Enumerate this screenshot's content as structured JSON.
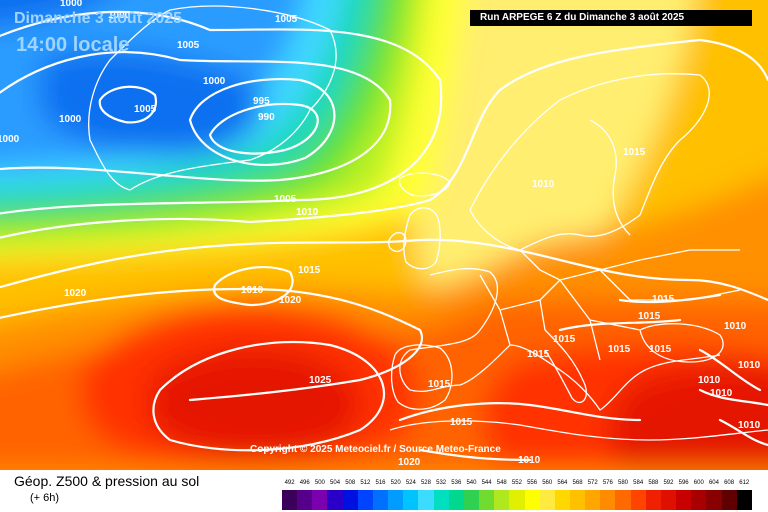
{
  "header": {
    "run_title": "Run ARPEGE 6 Z du Dimanche 3 août 2025",
    "valid_date": "Dimanche 3 août 2025",
    "valid_time": "14:00 locale"
  },
  "copyright": "Copyright © 2025 Meteociel.fr / Source Meteo-France",
  "legend": {
    "title": "Géop. Z500 & pression au sol",
    "subtitle": "(+ 6h)",
    "scale_values": [
      "492",
      "496",
      "500",
      "504",
      "508",
      "512",
      "516",
      "520",
      "524",
      "528",
      "532",
      "536",
      "540",
      "544",
      "548",
      "552",
      "556",
      "560",
      "564",
      "568",
      "572",
      "576",
      "580",
      "584",
      "588",
      "592",
      "596",
      "600",
      "604",
      "608",
      "612"
    ],
    "scale_colors": [
      "#3a005a",
      "#55008a",
      "#7a00b0",
      "#2a00c8",
      "#0010e0",
      "#0044ff",
      "#0070ff",
      "#009cff",
      "#00c4ff",
      "#3cdcff",
      "#00e0c0",
      "#00d890",
      "#30d050",
      "#70dc30",
      "#b0e820",
      "#e0f000",
      "#ffff00",
      "#ffea40",
      "#ffd800",
      "#ffc000",
      "#ffa600",
      "#ff8c00",
      "#ff6a00",
      "#ff4400",
      "#f02000",
      "#e01000",
      "#c80000",
      "#a80000",
      "#880000",
      "#600000",
      "#000000"
    ]
  },
  "pressure_labels": [
    "1000",
    "1005",
    "1000",
    "1005",
    "1000",
    "995",
    "990",
    "1000",
    "1000",
    "1005",
    "1005",
    "1010",
    "1015",
    "1010",
    "1020",
    "1020",
    "1025",
    "1015",
    "1015",
    "1015",
    "1015",
    "1015",
    "1015",
    "1015",
    "1010",
    "1010",
    "1010",
    "1010",
    "1010",
    "1020",
    "1015",
    "1010",
    "1015",
    "1010"
  ],
  "map_colors": {
    "deep_blue": "#1070f0",
    "blue": "#2a9cff",
    "cyan": "#40d8ff",
    "aqua": "#10d8b8",
    "green": "#5ce03a",
    "lime": "#b8f020",
    "yellow": "#ffff30",
    "pale_yellow": "#ffee70",
    "gold": "#ffc000",
    "orange": "#ff9000",
    "dark_orange": "#ff6400",
    "red": "#ff3000",
    "deep_red": "#e51800",
    "isobar": "#ffffff",
    "coast": "#ffffff"
  }
}
